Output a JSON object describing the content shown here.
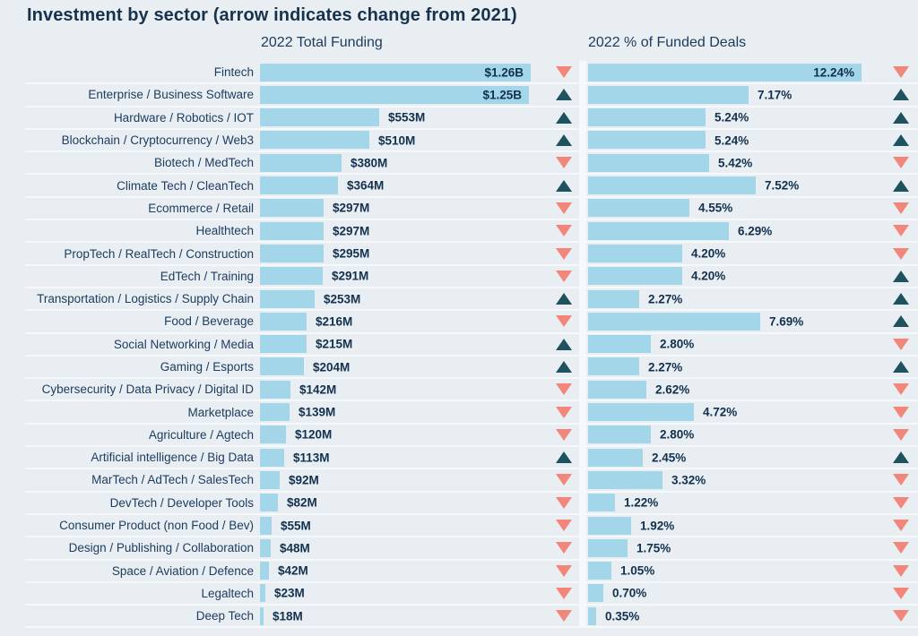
{
  "title": "Investment by sector (arrow indicates change from 2021)",
  "colors": {
    "background": "#e8eef1",
    "bar": "#a3d6e9",
    "label_text": "#1e3d62",
    "value_text": "#12304f",
    "arrow_up": "#1f525f",
    "arrow_down": "#f2867b",
    "separator": "#f6f9fb"
  },
  "chart_data": {
    "type": "bar",
    "orientation": "horizontal",
    "title": "Investment by sector (arrow indicates change from 2021)",
    "arrow_legend": "arrow indicates change from 2021",
    "grid": false,
    "columns": [
      {
        "key": "funding",
        "header": "2022 Total Funding",
        "unit": "USD",
        "max_value_m": 1260
      },
      {
        "key": "deals",
        "header": "2022 % of Funded Deals",
        "unit": "%",
        "max_value_pct": 12.24
      }
    ],
    "rows": [
      {
        "sector": "Fintech",
        "funding_label": "$1.26B",
        "funding_m": 1260,
        "funding_change": "down",
        "deals_label": "12.24%",
        "deals_pct": 12.24,
        "deals_change": "down"
      },
      {
        "sector": "Enterprise / Business Software",
        "funding_label": "$1.25B",
        "funding_m": 1250,
        "funding_change": "up",
        "deals_label": "7.17%",
        "deals_pct": 7.17,
        "deals_change": "up"
      },
      {
        "sector": "Hardware / Robotics / IOT",
        "funding_label": "$553M",
        "funding_m": 553,
        "funding_change": "up",
        "deals_label": "5.24%",
        "deals_pct": 5.24,
        "deals_change": "up"
      },
      {
        "sector": "Blockchain / Cryptocurrency / Web3",
        "funding_label": "$510M",
        "funding_m": 510,
        "funding_change": "up",
        "deals_label": "5.24%",
        "deals_pct": 5.24,
        "deals_change": "up"
      },
      {
        "sector": "Biotech / MedTech",
        "funding_label": "$380M",
        "funding_m": 380,
        "funding_change": "down",
        "deals_label": "5.42%",
        "deals_pct": 5.42,
        "deals_change": "down"
      },
      {
        "sector": "Climate Tech / CleanTech",
        "funding_label": "$364M",
        "funding_m": 364,
        "funding_change": "up",
        "deals_label": "7.52%",
        "deals_pct": 7.52,
        "deals_change": "up"
      },
      {
        "sector": "Ecommerce / Retail",
        "funding_label": "$297M",
        "funding_m": 297,
        "funding_change": "down",
        "deals_label": "4.55%",
        "deals_pct": 4.55,
        "deals_change": "down"
      },
      {
        "sector": "Healthtech",
        "funding_label": "$297M",
        "funding_m": 297,
        "funding_change": "down",
        "deals_label": "6.29%",
        "deals_pct": 6.29,
        "deals_change": "down"
      },
      {
        "sector": "PropTech / RealTech / Construction",
        "funding_label": "$295M",
        "funding_m": 295,
        "funding_change": "down",
        "deals_label": "4.20%",
        "deals_pct": 4.2,
        "deals_change": "down"
      },
      {
        "sector": "EdTech / Training",
        "funding_label": "$291M",
        "funding_m": 291,
        "funding_change": "down",
        "deals_label": "4.20%",
        "deals_pct": 4.2,
        "deals_change": "up"
      },
      {
        "sector": "Transportation / Logistics / Supply Chain",
        "funding_label": "$253M",
        "funding_m": 253,
        "funding_change": "up",
        "deals_label": "2.27%",
        "deals_pct": 2.27,
        "deals_change": "up"
      },
      {
        "sector": "Food / Beverage",
        "funding_label": "$216M",
        "funding_m": 216,
        "funding_change": "down",
        "deals_label": "7.69%",
        "deals_pct": 7.69,
        "deals_change": "up"
      },
      {
        "sector": "Social Networking / Media",
        "funding_label": "$215M",
        "funding_m": 215,
        "funding_change": "up",
        "deals_label": "2.80%",
        "deals_pct": 2.8,
        "deals_change": "down"
      },
      {
        "sector": "Gaming / Esports",
        "funding_label": "$204M",
        "funding_m": 204,
        "funding_change": "up",
        "deals_label": "2.27%",
        "deals_pct": 2.27,
        "deals_change": "up"
      },
      {
        "sector": "Cybersecurity / Data Privacy / Digital ID",
        "funding_label": "$142M",
        "funding_m": 142,
        "funding_change": "down",
        "deals_label": "2.62%",
        "deals_pct": 2.62,
        "deals_change": "down"
      },
      {
        "sector": "Marketplace",
        "funding_label": "$139M",
        "funding_m": 139,
        "funding_change": "down",
        "deals_label": "4.72%",
        "deals_pct": 4.72,
        "deals_change": "down"
      },
      {
        "sector": "Agriculture / Agtech",
        "funding_label": "$120M",
        "funding_m": 120,
        "funding_change": "down",
        "deals_label": "2.80%",
        "deals_pct": 2.8,
        "deals_change": "down"
      },
      {
        "sector": "Artificial intelligence / Big Data",
        "funding_label": "$113M",
        "funding_m": 113,
        "funding_change": "up",
        "deals_label": "2.45%",
        "deals_pct": 2.45,
        "deals_change": "up"
      },
      {
        "sector": "MarTech / AdTech / SalesTech",
        "funding_label": "$92M",
        "funding_m": 92,
        "funding_change": "down",
        "deals_label": "3.32%",
        "deals_pct": 3.32,
        "deals_change": "down"
      },
      {
        "sector": "DevTech / Developer Tools",
        "funding_label": "$82M",
        "funding_m": 82,
        "funding_change": "down",
        "deals_label": "1.22%",
        "deals_pct": 1.22,
        "deals_change": "down"
      },
      {
        "sector": "Consumer Product (non Food / Bev)",
        "funding_label": "$55M",
        "funding_m": 55,
        "funding_change": "down",
        "deals_label": "1.92%",
        "deals_pct": 1.92,
        "deals_change": "down"
      },
      {
        "sector": "Design / Publishing / Collaboration",
        "funding_label": "$48M",
        "funding_m": 48,
        "funding_change": "down",
        "deals_label": "1.75%",
        "deals_pct": 1.75,
        "deals_change": "down"
      },
      {
        "sector": "Space / Aviation / Defence",
        "funding_label": "$42M",
        "funding_m": 42,
        "funding_change": "down",
        "deals_label": "1.05%",
        "deals_pct": 1.05,
        "deals_change": "down"
      },
      {
        "sector": "Legaltech",
        "funding_label": "$23M",
        "funding_m": 23,
        "funding_change": "down",
        "deals_label": "0.70%",
        "deals_pct": 0.7,
        "deals_change": "down"
      },
      {
        "sector": "Deep Tech",
        "funding_label": "$18M",
        "funding_m": 18,
        "funding_change": "down",
        "deals_label": "0.35%",
        "deals_pct": 0.35,
        "deals_change": "down"
      }
    ]
  }
}
